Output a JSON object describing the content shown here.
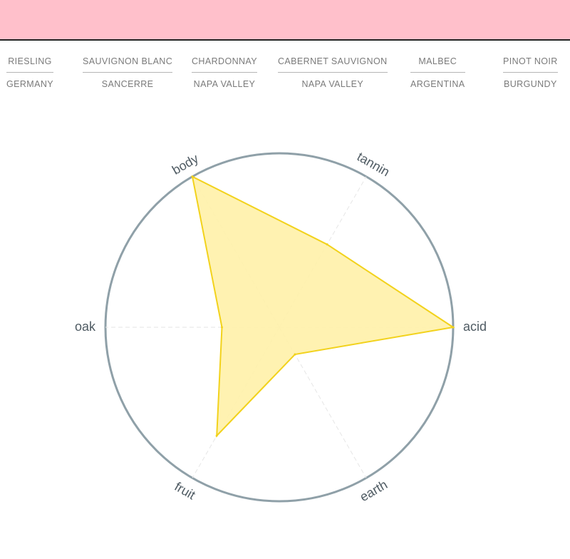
{
  "colors": {
    "header_bg": "#ffc0cb",
    "text": "#7a7a7a",
    "label_text": "#4f5b63",
    "circle": "#8fa0a8",
    "fill": "#fff1a8",
    "stroke": "#f2d21c",
    "spoke": "#e6e6e6"
  },
  "wines": [
    {
      "grape": "RIESLING",
      "region": "GERMANY"
    },
    {
      "grape": "SAUVIGNON BLANC",
      "region": "SANCERRE"
    },
    {
      "grape": "CHARDONNAY",
      "region": "NAPA VALLEY"
    },
    {
      "grape": "CABERNET SAUVIGNON",
      "region": "NAPA VALLEY"
    },
    {
      "grape": "MALBEC",
      "region": "ARGENTINA"
    },
    {
      "grape": "PINOT NOIR",
      "region": "BURGUNDY"
    }
  ],
  "chart_data": {
    "type": "radar",
    "axes": [
      "acid",
      "tannin",
      "body",
      "oak",
      "fruit",
      "earth"
    ],
    "values": [
      1.0,
      0.55,
      1.0,
      0.33,
      0.72,
      0.18
    ],
    "range": [
      0,
      1
    ],
    "grid": false,
    "legend": "none"
  }
}
